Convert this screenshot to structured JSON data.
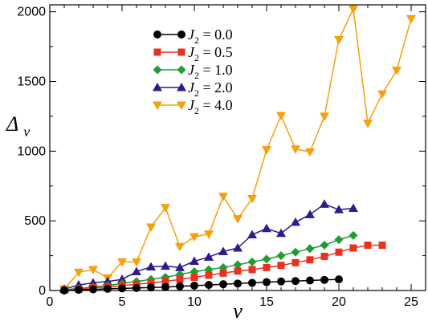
{
  "chart_data": {
    "type": "line",
    "xlabel": "ν",
    "ylabel": "Δ",
    "ylabel_sub": "ν",
    "xlim": [
      0,
      26
    ],
    "ylim": [
      0,
      2050
    ],
    "xticks": [
      0,
      5,
      10,
      15,
      20,
      25
    ],
    "yticks": [
      0,
      500,
      1000,
      1500,
      2000
    ],
    "grid": false,
    "legend_position": "top-left",
    "series": [
      {
        "name": "J2 = 0.0",
        "legend": {
          "symbol": "J",
          "sub": "2",
          "rest": " = 0.0"
        },
        "color": "#000000",
        "marker": "circle",
        "x": [
          1,
          2,
          3,
          4,
          5,
          6,
          7,
          8,
          9,
          10,
          11,
          12,
          13,
          14,
          15,
          16,
          17,
          18,
          19,
          20
        ],
        "y": [
          0,
          5,
          8,
          12,
          15,
          18,
          22,
          25,
          30,
          35,
          40,
          45,
          50,
          55,
          60,
          65,
          68,
          72,
          76,
          80
        ]
      },
      {
        "name": "J2 = 0.5",
        "legend": {
          "symbol": "J",
          "sub": "2",
          "rest": " = 0.5"
        },
        "color": "#e8321e",
        "marker": "square",
        "x": [
          1,
          2,
          3,
          4,
          5,
          6,
          7,
          8,
          9,
          10,
          11,
          12,
          13,
          14,
          15,
          16,
          17,
          18,
          19,
          20,
          21,
          22,
          23
        ],
        "y": [
          5,
          10,
          20,
          25,
          35,
          45,
          55,
          65,
          80,
          95,
          110,
          125,
          140,
          150,
          165,
          180,
          200,
          220,
          245,
          275,
          305,
          325,
          325
        ]
      },
      {
        "name": "J2 = 1.0",
        "legend": {
          "symbol": "J",
          "sub": "2",
          "rest": " = 1.0"
        },
        "color": "#1e9e32",
        "marker": "diamond",
        "x": [
          1,
          2,
          3,
          4,
          5,
          6,
          7,
          8,
          9,
          10,
          11,
          12,
          13,
          14,
          15,
          16,
          17,
          18,
          19,
          20,
          21
        ],
        "y": [
          5,
          15,
          25,
          35,
          50,
          65,
          80,
          95,
          115,
          135,
          150,
          165,
          185,
          205,
          225,
          250,
          275,
          300,
          325,
          365,
          395
        ]
      },
      {
        "name": "J2 = 2.0",
        "legend": {
          "symbol": "J",
          "sub": "2",
          "rest": " = 2.0"
        },
        "color": "#2e1a8a",
        "marker": "triangle-up",
        "x": [
          1,
          2,
          3,
          4,
          5,
          6,
          7,
          8,
          9,
          10,
          11,
          12,
          13,
          14,
          15,
          16,
          17,
          18,
          19,
          20,
          21
        ],
        "y": [
          10,
          40,
          55,
          65,
          80,
          135,
          170,
          175,
          165,
          210,
          240,
          280,
          305,
          400,
          445,
          410,
          490,
          545,
          620,
          580,
          590
        ]
      },
      {
        "name": "J2 = 4.0",
        "legend": {
          "symbol": "J",
          "sub": "2",
          "rest": " = 4.0"
        },
        "color": "#f5a00c",
        "marker": "triangle-down",
        "x": [
          1,
          2,
          3,
          4,
          5,
          6,
          7,
          8,
          9,
          10,
          11,
          12,
          13,
          14,
          15,
          16,
          17,
          18,
          19,
          20,
          21,
          22,
          23,
          24,
          25
        ],
        "y": [
          10,
          130,
          150,
          90,
          205,
          205,
          455,
          595,
          315,
          385,
          405,
          675,
          515,
          660,
          1010,
          1255,
          1015,
          995,
          1250,
          1800,
          2020,
          1200,
          1410,
          1580,
          1950
        ]
      }
    ]
  }
}
